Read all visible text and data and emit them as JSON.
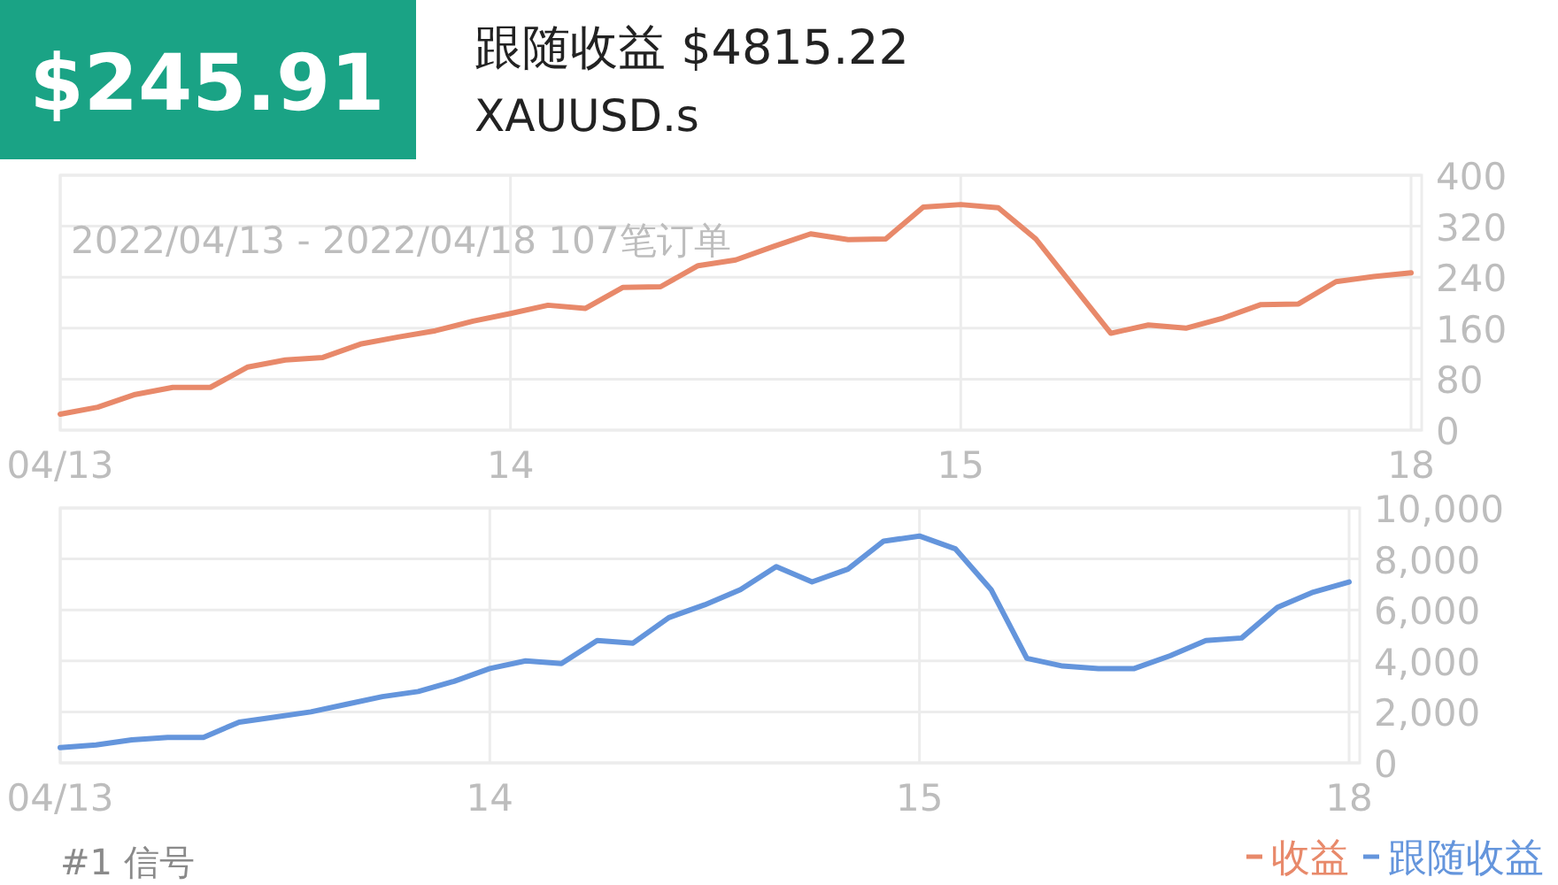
{
  "chart_data": [
    {
      "type": "line",
      "title": "跟随收益 $4815.22",
      "subtitle": "XAUUSD.s",
      "annotations": [
        "$245.91",
        "2022/04/13 - 2022/04/18 107笔订单"
      ],
      "categories": [
        "04/13",
        null,
        null,
        null,
        null,
        null,
        null,
        null,
        null,
        null,
        null,
        null,
        "14",
        null,
        null,
        null,
        null,
        null,
        null,
        null,
        null,
        null,
        null,
        null,
        "15",
        null,
        null,
        null,
        null,
        null,
        null,
        null,
        null,
        null,
        null,
        null,
        "18"
      ],
      "ylim": [
        0,
        400
      ],
      "yticks": [
        0,
        80,
        160,
        240,
        320,
        400
      ],
      "grid": true,
      "legend": "bottom right",
      "series": [
        {
          "name": "收益",
          "color": "#e8896a",
          "values": [
            25,
            36,
            56,
            67,
            67,
            99,
            110,
            114,
            135,
            146,
            156,
            171,
            183,
            196,
            191,
            224,
            225,
            258,
            267,
            288,
            308,
            299,
            300,
            350,
            354,
            349,
            300,
            226,
            152,
            165,
            160,
            176,
            197,
            198,
            233,
            241,
            247
          ]
        }
      ]
    },
    {
      "type": "line",
      "annotations": [
        "#1 信号"
      ],
      "categories": [
        "04/13",
        null,
        null,
        null,
        null,
        null,
        null,
        null,
        null,
        null,
        null,
        null,
        "14",
        null,
        null,
        null,
        null,
        null,
        null,
        null,
        null,
        null,
        null,
        null,
        "15",
        null,
        null,
        null,
        null,
        null,
        null,
        null,
        null,
        null,
        null,
        null,
        "18"
      ],
      "ylim": [
        0,
        10000
      ],
      "yticks": [
        0,
        {
          "value": 2000,
          "label": "2,000"
        },
        {
          "value": 4000,
          "label": "4,000"
        },
        {
          "value": 6000,
          "label": "6,000"
        },
        {
          "value": 8000,
          "label": "8,000"
        },
        {
          "value": 10000,
          "label": "10,000"
        }
      ],
      "grid": true,
      "legend": "bottom right",
      "series": [
        {
          "name": "跟随收益",
          "color": "#6495dc",
          "values": [
            600,
            700,
            900,
            1000,
            1000,
            1600,
            1800,
            2000,
            2300,
            2600,
            2800,
            3200,
            3700,
            4000,
            3900,
            4800,
            4700,
            5700,
            6200,
            6800,
            7700,
            7100,
            7600,
            8700,
            8900,
            8400,
            6800,
            4100,
            3800,
            3700,
            3700,
            4200,
            4800,
            4900,
            6100,
            6700,
            7100
          ]
        }
      ]
    }
  ]
}
